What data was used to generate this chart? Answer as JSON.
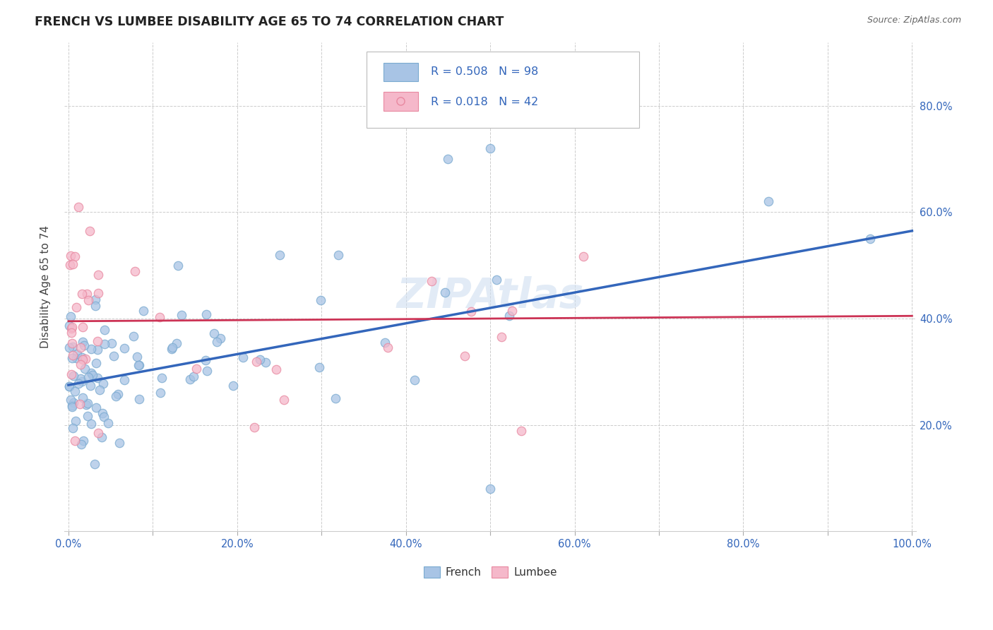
{
  "title": "FRENCH VS LUMBEE DISABILITY AGE 65 TO 74 CORRELATION CHART",
  "source": "Source: ZipAtlas.com",
  "ylabel": "Disability Age 65 to 74",
  "french_R": 0.508,
  "french_N": 98,
  "lumbee_R": 0.018,
  "lumbee_N": 42,
  "french_marker_color": "#a8c4e5",
  "french_edge_color": "#7aaad0",
  "lumbee_marker_color": "#f5b8ca",
  "lumbee_edge_color": "#e888a0",
  "french_line_color": "#3366bb",
  "lumbee_line_color": "#cc3355",
  "legend_text_color": "#3366bb",
  "watermark_color": "#d0dff0",
  "background_color": "#ffffff",
  "grid_color": "#cccccc",
  "tick_color": "#3366bb",
  "xlim": [
    -0.005,
    1.005
  ],
  "ylim": [
    0.0,
    0.92
  ],
  "xtick_vals": [
    0.0,
    0.1,
    0.2,
    0.3,
    0.4,
    0.5,
    0.6,
    0.7,
    0.8,
    0.9,
    1.0
  ],
  "xticklabels": [
    "0.0%",
    "",
    "20.0%",
    "",
    "40.0%",
    "",
    "60.0%",
    "",
    "80.0%",
    "",
    "100.0%"
  ],
  "ytick_vals": [
    0.2,
    0.4,
    0.6,
    0.8
  ],
  "yticklabels": [
    "20.0%",
    "40.0%",
    "60.0%",
    "80.0%"
  ],
  "french_line_x0": 0.0,
  "french_line_y0": 0.275,
  "french_line_x1": 1.0,
  "french_line_y1": 0.565,
  "lumbee_line_x0": 0.0,
  "lumbee_line_y0": 0.395,
  "lumbee_line_x1": 1.0,
  "lumbee_line_y1": 0.405
}
